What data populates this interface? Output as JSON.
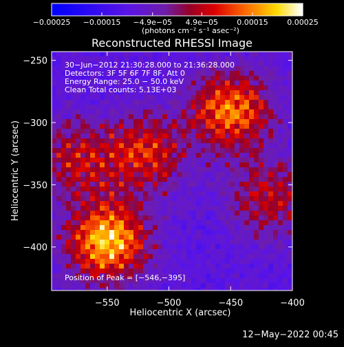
{
  "chart_data": {
    "type": "heatmap",
    "title": "Reconstructed RHESSI Image",
    "xlabel": "Heliocentric X (arcsec)",
    "ylabel": "Heliocentric Y (arcsec)",
    "xlim": [
      -595,
      -400
    ],
    "ylim": [
      -435,
      -243
    ],
    "xticks": [
      -550,
      -500,
      -450,
      -400
    ],
    "yticks": [
      -250,
      -300,
      -350,
      -400
    ],
    "xtick_labels": [
      "−550",
      "−500",
      "−450",
      "−400"
    ],
    "ytick_labels": [
      "−250",
      "−300",
      "−350",
      "−400"
    ],
    "colorbar": {
      "min": -0.00025,
      "max": 0.00025,
      "ticks": [
        -0.00025,
        -0.00015,
        -4.9e-05,
        4.9e-05,
        0.00015,
        0.00025
      ],
      "tick_labels": [
        "−0.00025",
        "−0.00015",
        "−4.9e−05",
        "4.9e−05",
        "0.00015",
        "0.00025"
      ],
      "unit_label": "(photons cm⁻² s⁻¹ asec⁻²)"
    },
    "annotations": [
      "30−Jun−2012 21:30:28.000 to 21:36:28.000",
      "Detectors: 3F 5F 6F 7F 8F, Att 0",
      "Energy Range: 25.0 − 50.0 keV",
      "Clean     Total counts: 5.13E+03"
    ],
    "peak_label": "Position of Peak = [−546,−395]",
    "peak_position": [
      -546,
      -395
    ],
    "bright_regions": [
      {
        "cx": -550,
        "cy": -395,
        "intensity": 0.00025
      },
      {
        "cx": -450,
        "cy": -290,
        "intensity": 0.0002
      },
      {
        "cx": -520,
        "cy": -325,
        "intensity": 0.00015
      },
      {
        "cx": -420,
        "cy": -360,
        "intensity": 0.00012
      },
      {
        "cx": -575,
        "cy": -330,
        "intensity": 0.00012
      }
    ]
  },
  "footer_date": "12−May−2022 00:45"
}
